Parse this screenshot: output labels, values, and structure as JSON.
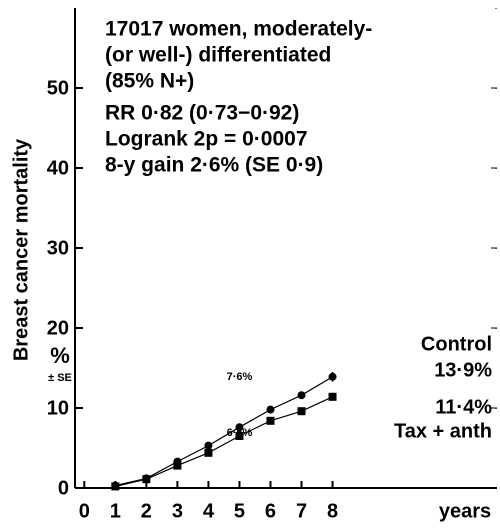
{
  "chart_data": {
    "type": "line",
    "title_lines": [
      "17017 women, moderately-",
      "(or well-) differentiated",
      "(85% N+)",
      "RR 0·82 (0·73−0·92)",
      "Logrank 2p = 0·0007",
      "8-y gain 2·6% (SE 0·9)"
    ],
    "y_label": "Breast cancer mortality",
    "y_unit": "%",
    "y_unit_note": "± SE",
    "x_label": "years",
    "x": [
      1,
      2,
      3,
      4,
      5,
      6,
      7,
      8
    ],
    "series": [
      {
        "name": "Control",
        "color": "#000000",
        "marker": "circle",
        "values": [
          0.3,
          1.2,
          3.3,
          5.3,
          7.6,
          9.8,
          11.6,
          13.9
        ],
        "errors": [
          null,
          null,
          null,
          null,
          null,
          null,
          null,
          0.6
        ],
        "value_labels": [
          null,
          null,
          null,
          null,
          "7·6%",
          null,
          null,
          "13·9%"
        ]
      },
      {
        "name": "Tax + anth",
        "color": "#000000",
        "marker": "square",
        "values": [
          0.2,
          1.1,
          2.8,
          4.4,
          6.5,
          8.4,
          9.6,
          11.4
        ],
        "errors": [
          null,
          null,
          null,
          null,
          null,
          null,
          null,
          0.5
        ],
        "value_labels": [
          null,
          null,
          null,
          null,
          "6·5%",
          null,
          null,
          "11·4%"
        ]
      }
    ],
    "xlim": [
      -0.3,
      13.3
    ],
    "xticks": [
      0,
      1,
      2,
      3,
      4,
      5,
      6,
      7,
      8
    ],
    "ylim": [
      0,
      60
    ],
    "yticks": [
      0,
      10,
      20,
      30,
      40,
      50
    ]
  }
}
